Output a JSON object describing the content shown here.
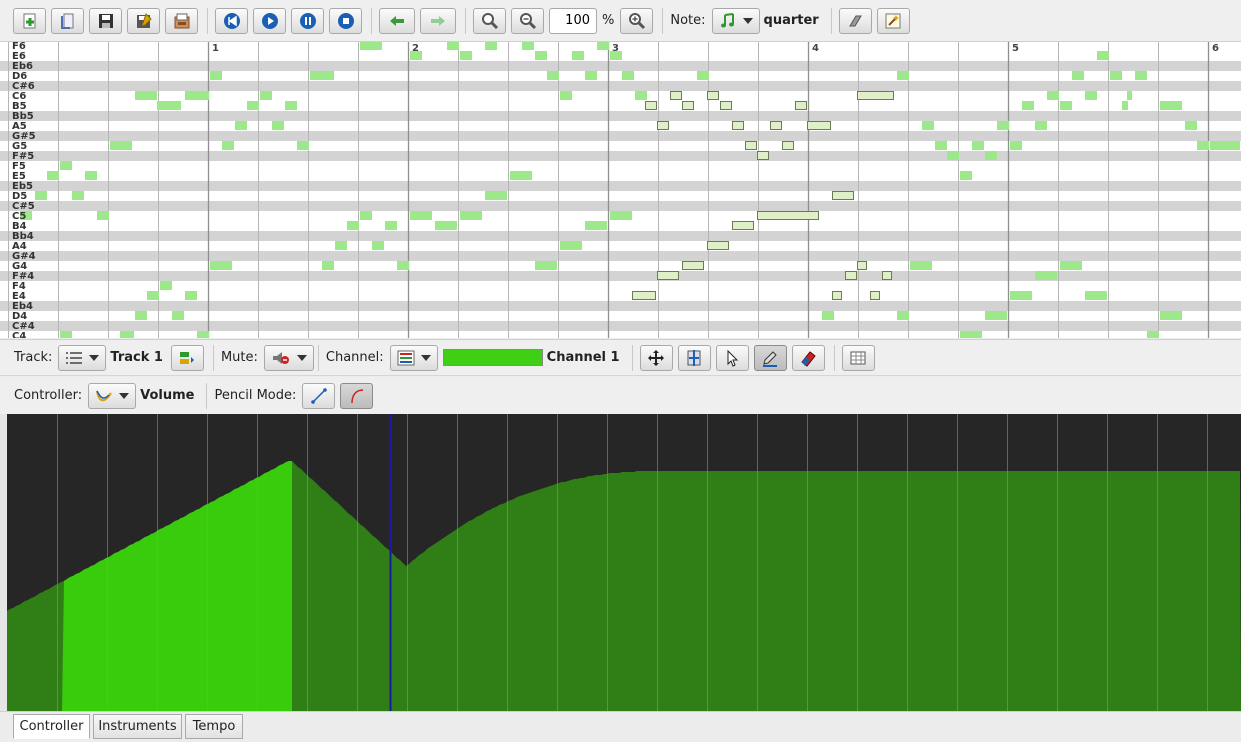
{
  "toolbar": {
    "buttons": [
      {
        "name": "new-file-icon",
        "color": "#2e9a2e"
      },
      {
        "name": "open-file-icon",
        "color": "#4a6fb0"
      },
      {
        "name": "save-icon",
        "color": "#333"
      },
      {
        "name": "save-as-icon",
        "color": "#d9a400"
      },
      {
        "name": "export-icon",
        "color": "#8a4a2a"
      },
      {
        "name": "rewind-icon",
        "color": "#1a5fb4"
      },
      {
        "name": "play-icon",
        "color": "#1a5fb4"
      },
      {
        "name": "pause-icon",
        "color": "#1a5fb4"
      },
      {
        "name": "stop-icon",
        "color": "#1a5fb4"
      },
      {
        "name": "undo-icon",
        "color": "#3a9a3a"
      },
      {
        "name": "redo-icon",
        "color": "#8fcf8f"
      }
    ],
    "zoom_value": "100",
    "zoom_unit": "%",
    "note_label": "Note:",
    "note_value": "quarter"
  },
  "piano_roll": {
    "pitches": [
      "F6",
      "E6",
      "Eb6",
      "D6",
      "C#6",
      "C6",
      "B5",
      "Bb5",
      "A5",
      "G#5",
      "G5",
      "F#5",
      "F5",
      "E5",
      "Eb5",
      "D5",
      "C#5",
      "C5",
      "B4",
      "Bb4",
      "A4",
      "G#4",
      "G4",
      "F#4",
      "F4",
      "E4",
      "Eb4",
      "D4",
      "C#4",
      "C4"
    ],
    "measures": [
      "1",
      "2",
      "3",
      "4",
      "5",
      "6"
    ]
  },
  "track_bar": {
    "track_label": "Track:",
    "track_name": "Track 1",
    "mute_label": "Mute:",
    "channel_label": "Channel:",
    "channel_name": "Channel 1",
    "channel_color": "#3fcf14"
  },
  "controller_bar": {
    "controller_label": "Controller:",
    "controller_name": "Volume",
    "pencil_label": "Pencil Mode:"
  },
  "tabs": [
    "Controller",
    "Instruments",
    "Tempo"
  ],
  "colors": {
    "note_fill": "#9de88a",
    "selected_note": "#dff0c8",
    "curve_fill": "#2f7f16",
    "selected_curve": "#39cc0c",
    "playhead": "#1a1aaa",
    "control_bg": "#262626"
  }
}
